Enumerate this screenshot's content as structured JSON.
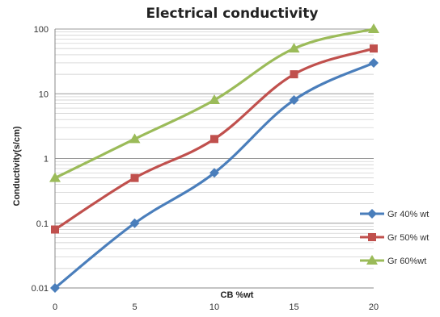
{
  "chart_data": {
    "type": "line",
    "title": "Electrical conductivity",
    "xlabel": "CB  %wt",
    "ylabel": "Conductivity(s/cm)",
    "x": [
      0,
      5,
      10,
      15,
      20
    ],
    "x_ticks": [
      "0",
      "5",
      "10",
      "15",
      "20"
    ],
    "y_scale": "log",
    "ylim": [
      0.01,
      100
    ],
    "y_ticks": [
      "0.01",
      "0.1",
      "1",
      "10",
      "100"
    ],
    "grid": true,
    "legend_position": "right",
    "series": [
      {
        "name": "Gr 40% wt",
        "color": "#4a7ebb",
        "marker": "diamond",
        "values": [
          0.01,
          0.1,
          0.6,
          8,
          30
        ]
      },
      {
        "name": "Gr 50% wt",
        "color": "#c0504d",
        "marker": "square",
        "values": [
          0.08,
          0.5,
          2,
          20,
          50
        ]
      },
      {
        "name": "Gr 60%wt",
        "color": "#9bbb59",
        "marker": "triangle",
        "values": [
          0.5,
          2,
          8,
          50,
          100
        ]
      }
    ]
  }
}
